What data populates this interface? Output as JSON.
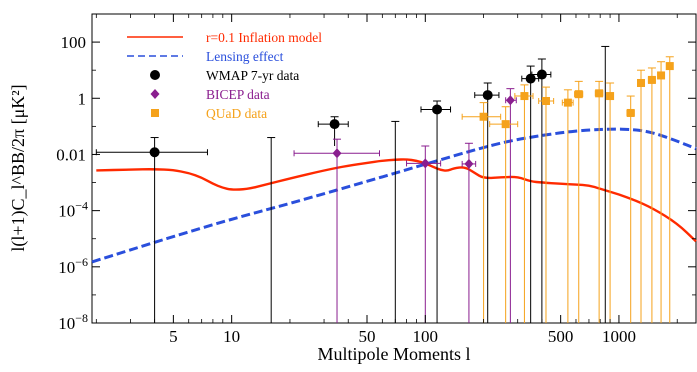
{
  "chart_data": {
    "type": "scatter",
    "title": "",
    "xlabel": "Multipole Moments l",
    "ylabel": "l(l+1)C_l^BB/2π [μK²]",
    "xscale": "log",
    "yscale": "log",
    "xlim": [
      1.9,
      2500
    ],
    "ylim": [
      1e-08,
      1000
    ],
    "grid": false,
    "legend_position": "top-left",
    "x_ticks": [
      {
        "value": 5,
        "label": "5"
      },
      {
        "value": 10,
        "label": "10"
      },
      {
        "value": 50,
        "label": "50"
      },
      {
        "value": 100,
        "label": "100"
      },
      {
        "value": 500,
        "label": "500"
      },
      {
        "value": 1000,
        "label": "1000"
      }
    ],
    "y_ticks": [
      {
        "value": 1e-08,
        "label": "10",
        "sup": "−8"
      },
      {
        "value": 1e-06,
        "label": "10",
        "sup": "−6"
      },
      {
        "value": 0.0001,
        "label": "10",
        "sup": "−4"
      },
      {
        "value": 0.01,
        "label": "0.01",
        "sup": ""
      },
      {
        "value": 1,
        "label": "1",
        "sup": ""
      },
      {
        "value": 100,
        "label": "100",
        "sup": ""
      }
    ],
    "series": [
      {
        "name": "r=0.1 Inflation model",
        "kind": "line",
        "color": "#ff2a00",
        "style": "solid",
        "points": [
          [
            2,
            0.0027
          ],
          [
            3,
            0.0029
          ],
          [
            4,
            0.003
          ],
          [
            5,
            0.0028
          ],
          [
            6,
            0.0022
          ],
          [
            7,
            0.0015
          ],
          [
            8,
            0.0009
          ],
          [
            9,
            0.00065
          ],
          [
            10,
            0.00055
          ],
          [
            12,
            0.00058
          ],
          [
            15,
            0.00085
          ],
          [
            20,
            0.0014
          ],
          [
            30,
            0.0027
          ],
          [
            40,
            0.004
          ],
          [
            50,
            0.005
          ],
          [
            60,
            0.006
          ],
          [
            70,
            0.0065
          ],
          [
            80,
            0.0067
          ],
          [
            90,
            0.006
          ],
          [
            100,
            0.0048
          ],
          [
            110,
            0.0036
          ],
          [
            120,
            0.0028
          ],
          [
            130,
            0.0026
          ],
          [
            140,
            0.0032
          ],
          [
            160,
            0.0036
          ],
          [
            180,
            0.0022
          ],
          [
            200,
            0.0014
          ],
          [
            250,
            0.00155
          ],
          [
            300,
            0.0016
          ],
          [
            350,
            0.0011
          ],
          [
            400,
            0.001
          ],
          [
            500,
            0.0009
          ],
          [
            600,
            0.00085
          ],
          [
            700,
            0.0008
          ],
          [
            800,
            0.0006
          ],
          [
            1000,
            0.00038
          ],
          [
            1200,
            0.00024
          ],
          [
            1500,
            0.00012
          ],
          [
            2000,
            3.5e-05
          ],
          [
            2500,
            8e-06
          ]
        ]
      },
      {
        "name": "Lensing effect",
        "kind": "line",
        "color": "#2a4fdc",
        "style": "dashed",
        "points": [
          [
            1.9,
            1.5e-06
          ],
          [
            3,
            4e-06
          ],
          [
            5,
            1.2e-05
          ],
          [
            10,
            5e-05
          ],
          [
            20,
            0.00018
          ],
          [
            50,
            0.0011
          ],
          [
            100,
            0.0045
          ],
          [
            200,
            0.018
          ],
          [
            300,
            0.035
          ],
          [
            500,
            0.06
          ],
          [
            700,
            0.075
          ],
          [
            900,
            0.08
          ],
          [
            1200,
            0.078
          ],
          [
            1500,
            0.06
          ],
          [
            2000,
            0.03
          ],
          [
            2500,
            0.016
          ]
        ]
      },
      {
        "name": "WMAP 7-yr data",
        "kind": "points",
        "marker": "circle",
        "color": "#000000",
        "error_color": "#000000",
        "points": [
          {
            "x": 4,
            "y": 0.012,
            "xlo": 2,
            "xhi": 7.5,
            "ylo": 1e-08,
            "yhi": 0.04
          },
          {
            "x": 16,
            "y": null,
            "xlo": null,
            "xhi": null,
            "ylo": 1e-08,
            "yhi": 0.04
          },
          {
            "x": 34,
            "y": 0.12,
            "xlo": 28,
            "xhi": 40,
            "ylo": 0.02,
            "yhi": 0.22
          },
          {
            "x": 70,
            "y": null,
            "xlo": null,
            "xhi": null,
            "ylo": 1e-08,
            "yhi": 0.15
          },
          {
            "x": 115,
            "y": 0.4,
            "xlo": 95,
            "xhi": 135,
            "ylo": 1e-08,
            "yhi": 0.8
          },
          {
            "x": 210,
            "y": 1.3,
            "xlo": 180,
            "xhi": 240,
            "ylo": 1e-08,
            "yhi": 3.5
          },
          {
            "x": 350,
            "y": 5,
            "xlo": 315,
            "xhi": 385,
            "ylo": 1e-08,
            "yhi": 14
          },
          {
            "x": 400,
            "y": 7,
            "xlo": 355,
            "xhi": 445,
            "ylo": 1e-08,
            "yhi": 25
          },
          {
            "x": 850,
            "y": null,
            "xlo": null,
            "xhi": null,
            "ylo": 1e-08,
            "yhi": 70
          }
        ]
      },
      {
        "name": "BICEP data",
        "kind": "points",
        "marker": "diamond",
        "color": "#8a1e8f",
        "error_color": "#8a1e8f",
        "points": [
          {
            "x": 35,
            "y": 0.011,
            "xlo": 21,
            "xhi": 58,
            "ylo": 1e-08,
            "yhi": 0.035
          },
          {
            "x": 100,
            "y": 0.0048,
            "xlo": 80,
            "xhi": 120,
            "ylo": 1e-08,
            "yhi": 0.02
          },
          {
            "x": 168,
            "y": 0.0046,
            "xlo": 155,
            "xhi": 182,
            "ylo": 1e-08,
            "yhi": 0.025
          },
          {
            "x": 275,
            "y": 0.85,
            "xlo": 260,
            "xhi": 295,
            "ylo": 1e-08,
            "yhi": 2.2
          }
        ]
      },
      {
        "name": "QUaD data",
        "kind": "points",
        "marker": "square",
        "color": "#f5a21b",
        "error_color": "#f5a21b",
        "points": [
          {
            "x": 200,
            "y": 0.22,
            "xlo": 155,
            "xhi": 245,
            "ylo": 1e-08,
            "yhi": 0.7
          },
          {
            "x": 260,
            "y": 0.12,
            "xlo": 215,
            "xhi": 300,
            "ylo": 1e-08,
            "yhi": 0.5
          },
          {
            "x": 325,
            "y": 1.2,
            "xlo": 290,
            "xhi": 360,
            "ylo": 1e-08,
            "yhi": 3
          },
          {
            "x": 420,
            "y": 0.8,
            "xlo": 385,
            "xhi": 460,
            "ylo": 1e-08,
            "yhi": 2.5
          },
          {
            "x": 545,
            "y": 0.7,
            "xlo": 510,
            "xhi": 580,
            "ylo": 1e-08,
            "yhi": 2
          },
          {
            "x": 620,
            "y": 1.4,
            "xlo": 590,
            "xhi": 650,
            "ylo": 1e-08,
            "yhi": 4
          },
          {
            "x": 790,
            "y": 1.5,
            "xlo": 755,
            "xhi": 825,
            "ylo": 1e-08,
            "yhi": 4
          },
          {
            "x": 900,
            "y": 1.2,
            "xlo": 865,
            "xhi": 935,
            "ylo": 1e-08,
            "yhi": 3.5
          },
          {
            "x": 1150,
            "y": 0.3,
            "xlo": 1100,
            "xhi": 1200,
            "ylo": 1e-08,
            "yhi": 1.2
          },
          {
            "x": 1300,
            "y": 3.5,
            "xlo": 1250,
            "xhi": 1350,
            "ylo": 1e-08,
            "yhi": 10
          },
          {
            "x": 1480,
            "y": 4.5,
            "xlo": 1420,
            "xhi": 1540,
            "ylo": 1e-08,
            "yhi": 12
          },
          {
            "x": 1650,
            "y": 6.5,
            "xlo": 1590,
            "xhi": 1710,
            "ylo": 1e-08,
            "yhi": 20
          },
          {
            "x": 1830,
            "y": 14,
            "xlo": 1770,
            "xhi": 1890,
            "ylo": 1e-08,
            "yhi": 30
          }
        ]
      }
    ]
  }
}
